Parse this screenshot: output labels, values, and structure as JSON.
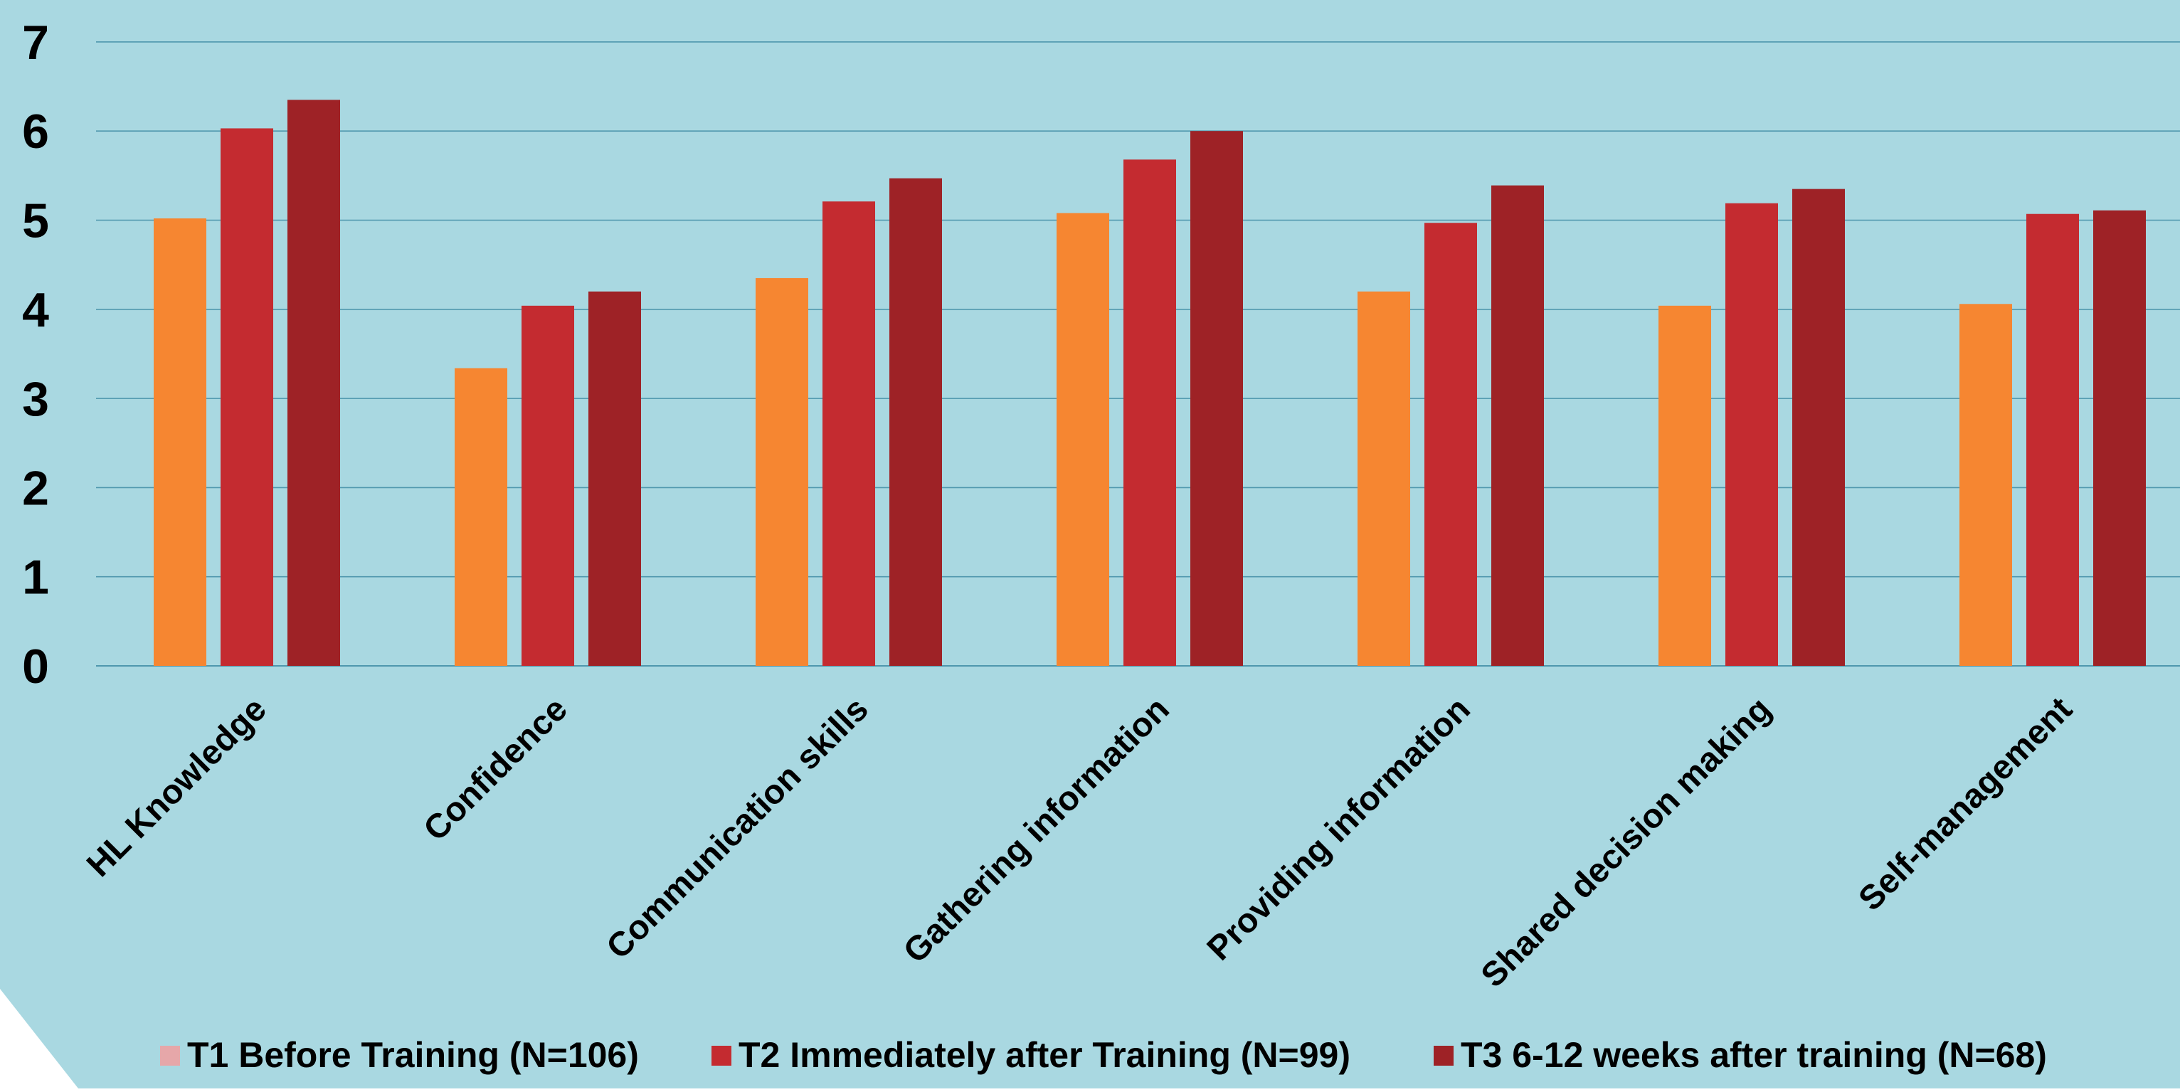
{
  "colors": {
    "background": "#a9d8e1",
    "page_corner": "#ffffff",
    "gridline": "#4f97ad",
    "legend_swatch_t1": "#e6a7a9"
  },
  "chart_data": {
    "type": "bar",
    "title": "",
    "xlabel": "",
    "ylabel": "",
    "ylim": [
      0,
      7
    ],
    "yticks": [
      0,
      1,
      2,
      3,
      4,
      5,
      6,
      7
    ],
    "grid": true,
    "legend_position": "bottom",
    "categories": [
      "HL Knowledge",
      "Confidence",
      "Communication skills",
      "Gathering information",
      "Providing information",
      "Shared decision making",
      "Self-management"
    ],
    "series": [
      {
        "name": "T1 Before Training (N=106)",
        "color": "#f68631",
        "values": [
          5.02,
          3.34,
          4.35,
          5.08,
          4.2,
          4.04,
          4.06
        ]
      },
      {
        "name": "T2 Immediately after Training (N=99)",
        "color": "#c42b30",
        "values": [
          6.03,
          4.04,
          5.21,
          5.68,
          4.97,
          5.19,
          5.07
        ]
      },
      {
        "name": "T3 6-12 weeks after training (N=68)",
        "color": "#9e2226",
        "values": [
          6.35,
          4.2,
          5.47,
          6.0,
          5.39,
          5.35,
          5.11
        ]
      }
    ]
  }
}
